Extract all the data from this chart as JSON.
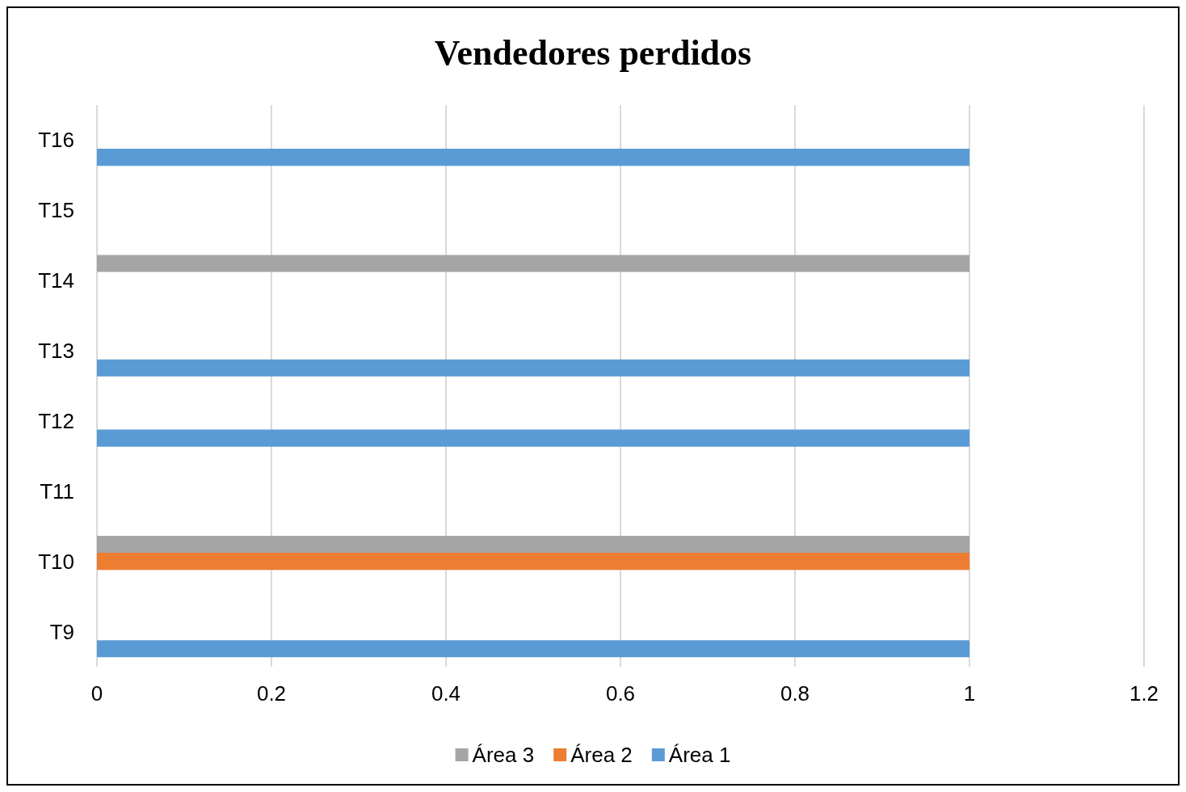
{
  "chart_data": {
    "type": "bar",
    "orientation": "horizontal",
    "title": "Vendedores perdidos",
    "categories": [
      "T16",
      "T15",
      "T14",
      "T13",
      "T12",
      "T11",
      "T10",
      "T9"
    ],
    "series": [
      {
        "name": "Área 3",
        "color": "#a5a5a5",
        "values": [
          null,
          null,
          1,
          null,
          null,
          null,
          1,
          null
        ]
      },
      {
        "name": "Área 2",
        "color": "#ed7d31",
        "values": [
          null,
          null,
          null,
          null,
          null,
          null,
          1,
          null
        ]
      },
      {
        "name": "Área 1",
        "color": "#5b9bd5",
        "values": [
          1,
          null,
          null,
          1,
          1,
          null,
          null,
          1
        ]
      }
    ],
    "xlim": [
      0,
      1.2
    ],
    "xticks": [
      0,
      0.2,
      0.4,
      0.6,
      0.8,
      1,
      1.2
    ],
    "grid": "x",
    "legend": "bottom"
  }
}
